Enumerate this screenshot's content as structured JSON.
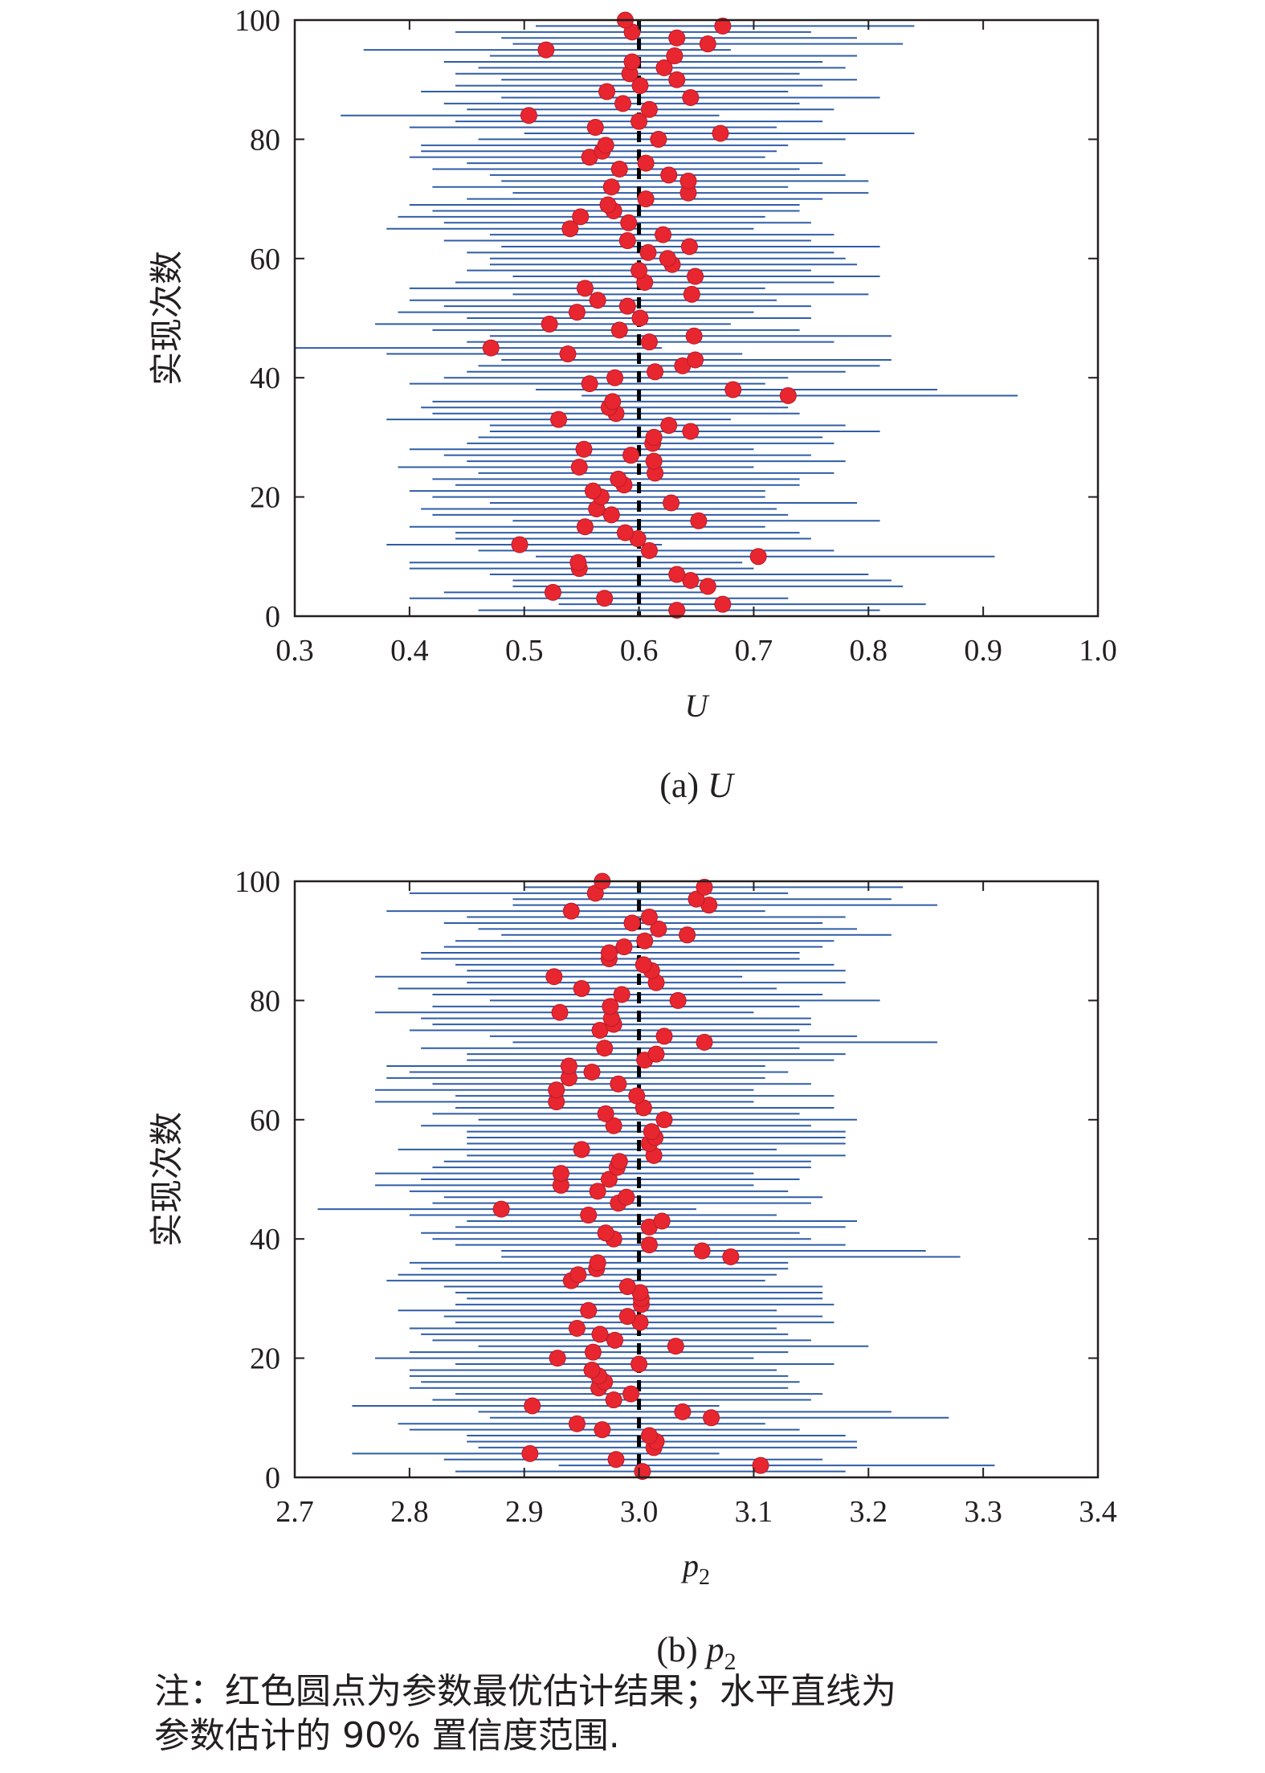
{
  "chart_data": [
    {
      "type": "scatter",
      "panel": "a",
      "ylabel": "实现次数",
      "xlabel": "U",
      "caption_prefix": "(a) ",
      "caption_var": "U",
      "xlim": [
        0.3,
        1.0
      ],
      "ylim": [
        0,
        100
      ],
      "xticks": [
        "0.3",
        "0.4",
        "0.5",
        "0.6",
        "0.7",
        "0.8",
        "0.9",
        "1.0"
      ],
      "xtick_values": [
        0.3,
        0.4,
        0.5,
        0.6,
        0.7,
        0.8,
        0.9,
        1.0
      ],
      "yticks": [
        "0",
        "20",
        "40",
        "60",
        "80",
        "100"
      ],
      "ytick_values": [
        0,
        20,
        40,
        60,
        80,
        100
      ],
      "true_value": 0.6,
      "series": [
        {
          "role": "best estimate (red dots)",
          "realization": [
            1,
            2,
            3,
            4,
            5,
            6,
            7,
            8,
            9,
            10,
            11,
            12,
            13,
            14,
            15,
            16,
            17,
            18,
            19,
            20,
            21,
            22,
            23,
            24,
            25,
            26,
            27,
            28,
            29,
            30,
            31,
            32,
            33,
            34,
            35,
            36,
            37,
            38,
            39,
            40,
            41,
            42,
            43,
            44,
            45,
            46,
            47,
            48,
            49,
            50,
            51,
            52,
            53,
            54,
            55,
            56,
            57,
            58,
            59,
            60,
            61,
            62,
            63,
            64,
            65,
            66,
            67,
            68,
            69,
            70,
            71,
            72,
            73,
            74,
            75,
            76,
            77,
            78,
            79,
            80,
            81,
            82,
            83,
            84,
            85,
            86,
            87,
            88,
            89,
            90,
            91,
            92,
            93,
            94,
            95,
            96,
            97,
            98,
            99,
            100
          ],
          "estimate": [
            0.633,
            0.673,
            0.57,
            0.525,
            0.66,
            0.645,
            0.633,
            0.548,
            0.547,
            0.704,
            0.609,
            0.496,
            0.599,
            0.588,
            0.553,
            0.652,
            0.576,
            0.563,
            0.628,
            0.567,
            0.56,
            0.587,
            0.582,
            0.614,
            0.548,
            0.613,
            0.593,
            0.552,
            0.612,
            0.613,
            0.645,
            0.626,
            0.53,
            0.58,
            0.574,
            0.577,
            0.73,
            0.682,
            0.557,
            0.579,
            0.614,
            0.638,
            0.649,
            0.538,
            0.471,
            0.609,
            0.648,
            0.583,
            0.522,
            0.601,
            0.546,
            0.59,
            0.564,
            0.646,
            0.553,
            0.605,
            0.649,
            0.6,
            0.629,
            0.625,
            0.608,
            0.644,
            0.59,
            0.621,
            0.54,
            0.591,
            0.549,
            0.578,
            0.573,
            0.606,
            0.643,
            0.576,
            0.643,
            0.626,
            0.583,
            0.606,
            0.557,
            0.568,
            0.571,
            0.617,
            0.671,
            0.562,
            0.6,
            0.504,
            0.609,
            0.586,
            0.645,
            0.572,
            0.601,
            0.633,
            0.592,
            0.622,
            0.594,
            0.631,
            0.519,
            0.66,
            0.633,
            0.594,
            0.673,
            0.588
          ],
          "lower": [
            0.46,
            0.53,
            0.4,
            0.43,
            0.49,
            0.49,
            0.47,
            0.4,
            0.4,
            0.51,
            0.46,
            0.38,
            0.44,
            0.44,
            0.4,
            0.49,
            0.42,
            0.41,
            0.47,
            0.42,
            0.4,
            0.44,
            0.42,
            0.46,
            0.39,
            0.45,
            0.43,
            0.4,
            0.45,
            0.46,
            0.47,
            0.47,
            0.38,
            0.42,
            0.41,
            0.42,
            0.55,
            0.51,
            0.4,
            0.43,
            0.45,
            0.46,
            0.48,
            0.38,
            0.3,
            0.45,
            0.47,
            0.42,
            0.37,
            0.45,
            0.39,
            0.43,
            0.4,
            0.49,
            0.4,
            0.44,
            0.49,
            0.45,
            0.47,
            0.47,
            0.45,
            0.48,
            0.43,
            0.47,
            0.38,
            0.43,
            0.39,
            0.42,
            0.4,
            0.45,
            0.49,
            0.42,
            0.48,
            0.47,
            0.42,
            0.45,
            0.4,
            0.41,
            0.41,
            0.46,
            0.5,
            0.4,
            0.44,
            0.34,
            0.45,
            0.43,
            0.48,
            0.41,
            0.44,
            0.48,
            0.44,
            0.46,
            0.43,
            0.47,
            0.36,
            0.49,
            0.48,
            0.44,
            0.51,
            0.45
          ],
          "upper": [
            0.81,
            0.85,
            0.73,
            0.66,
            0.83,
            0.82,
            0.8,
            0.7,
            0.69,
            0.91,
            0.77,
            0.62,
            0.75,
            0.74,
            0.71,
            0.81,
            0.73,
            0.72,
            0.79,
            0.71,
            0.71,
            0.74,
            0.74,
            0.77,
            0.7,
            0.78,
            0.75,
            0.7,
            0.77,
            0.76,
            0.81,
            0.78,
            0.68,
            0.74,
            0.73,
            0.73,
            0.93,
            0.86,
            0.71,
            0.73,
            0.78,
            0.81,
            0.82,
            0.69,
            0.62,
            0.77,
            0.82,
            0.74,
            0.68,
            0.75,
            0.7,
            0.75,
            0.72,
            0.8,
            0.71,
            0.77,
            0.81,
            0.75,
            0.79,
            0.78,
            0.77,
            0.81,
            0.75,
            0.77,
            0.7,
            0.75,
            0.71,
            0.74,
            0.74,
            0.76,
            0.8,
            0.73,
            0.8,
            0.78,
            0.74,
            0.76,
            0.71,
            0.72,
            0.73,
            0.78,
            0.84,
            0.72,
            0.76,
            0.67,
            0.77,
            0.74,
            0.81,
            0.73,
            0.76,
            0.79,
            0.74,
            0.78,
            0.76,
            0.79,
            0.68,
            0.83,
            0.79,
            0.75,
            0.84,
            0.73
          ]
        }
      ]
    },
    {
      "type": "scatter",
      "panel": "b",
      "ylabel": "实现次数",
      "xlabel_base": "p",
      "xlabel_sub": "2",
      "caption_prefix": "(b) ",
      "caption_var": "p",
      "caption_sub": "2",
      "xlim": [
        2.7,
        3.4
      ],
      "ylim": [
        0,
        100
      ],
      "xticks": [
        "2.7",
        "2.8",
        "2.9",
        "3.0",
        "3.1",
        "3.2",
        "3.3",
        "3.4"
      ],
      "xtick_values": [
        2.7,
        2.8,
        2.9,
        3.0,
        3.1,
        3.2,
        3.3,
        3.4
      ],
      "yticks": [
        "0",
        "20",
        "40",
        "60",
        "80",
        "100"
      ],
      "ytick_values": [
        0,
        20,
        40,
        60,
        80,
        100
      ],
      "true_value": 3.0,
      "series": [
        {
          "role": "best estimate (red dots)",
          "realization": [
            1,
            2,
            3,
            4,
            5,
            6,
            7,
            8,
            9,
            10,
            11,
            12,
            13,
            14,
            15,
            16,
            17,
            18,
            19,
            20,
            21,
            22,
            23,
            24,
            25,
            26,
            27,
            28,
            29,
            30,
            31,
            32,
            33,
            34,
            35,
            36,
            37,
            38,
            39,
            40,
            41,
            42,
            43,
            44,
            45,
            46,
            47,
            48,
            49,
            50,
            51,
            52,
            53,
            54,
            55,
            56,
            57,
            58,
            59,
            60,
            61,
            62,
            63,
            64,
            65,
            66,
            67,
            68,
            69,
            70,
            71,
            72,
            73,
            74,
            75,
            76,
            77,
            78,
            79,
            80,
            81,
            82,
            83,
            84,
            85,
            86,
            87,
            88,
            89,
            90,
            91,
            92,
            93,
            94,
            95,
            96,
            97,
            98,
            99,
            100
          ],
          "estimate": [
            3.003,
            3.106,
            2.98,
            2.905,
            3.013,
            3.015,
            3.009,
            2.968,
            2.946,
            3.063,
            3.038,
            2.907,
            2.978,
            2.993,
            2.965,
            2.97,
            2.965,
            2.959,
            3.0,
            2.929,
            2.96,
            3.032,
            2.979,
            2.966,
            2.946,
            3.001,
            2.99,
            2.956,
            3.002,
            3.002,
            3.001,
            2.99,
            2.941,
            2.947,
            2.963,
            2.964,
            3.08,
            3.055,
            3.009,
            2.978,
            2.971,
            3.009,
            3.02,
            2.956,
            2.88,
            2.982,
            2.989,
            2.964,
            2.932,
            2.974,
            2.932,
            2.981,
            2.983,
            3.013,
            2.95,
            3.009,
            3.014,
            3.011,
            2.978,
            3.022,
            2.971,
            3.004,
            2.928,
            2.998,
            2.928,
            2.982,
            2.939,
            2.959,
            2.939,
            3.005,
            3.015,
            2.97,
            3.057,
            3.022,
            2.966,
            2.978,
            2.976,
            2.931,
            2.975,
            3.034,
            2.985,
            2.95,
            3.015,
            2.926,
            3.011,
            3.004,
            2.974,
            2.974,
            2.987,
            3.005,
            3.042,
            3.017,
            2.994,
            3.009,
            2.941,
            3.061,
            3.05,
            2.962,
            3.057,
            2.968
          ],
          "lower": [
            2.84,
            2.93,
            2.83,
            2.75,
            2.86,
            2.85,
            2.85,
            2.8,
            2.79,
            2.87,
            2.86,
            2.75,
            2.82,
            2.84,
            2.8,
            2.81,
            2.8,
            2.8,
            2.84,
            2.77,
            2.8,
            2.86,
            2.82,
            2.81,
            2.8,
            2.84,
            2.83,
            2.79,
            2.84,
            2.85,
            2.84,
            2.83,
            2.78,
            2.79,
            2.81,
            2.8,
            2.88,
            2.88,
            2.84,
            2.82,
            2.81,
            2.84,
            2.85,
            2.8,
            2.72,
            2.82,
            2.83,
            2.8,
            2.77,
            2.81,
            2.77,
            2.82,
            2.83,
            2.85,
            2.79,
            2.85,
            2.85,
            2.85,
            2.81,
            2.86,
            2.82,
            2.84,
            2.77,
            2.84,
            2.77,
            2.82,
            2.78,
            2.8,
            2.78,
            2.85,
            2.85,
            2.81,
            2.89,
            2.87,
            2.8,
            2.82,
            2.81,
            2.77,
            2.82,
            2.87,
            2.82,
            2.79,
            2.85,
            2.77,
            2.85,
            2.84,
            2.81,
            2.81,
            2.83,
            2.84,
            2.88,
            2.86,
            2.83,
            2.85,
            2.78,
            2.89,
            2.89,
            2.8,
            2.9,
            2.81
          ],
          "upper": [
            3.18,
            3.31,
            3.16,
            3.07,
            3.19,
            3.19,
            3.18,
            3.14,
            3.11,
            3.27,
            3.22,
            3.07,
            3.15,
            3.16,
            3.13,
            3.14,
            3.13,
            3.12,
            3.17,
            3.1,
            3.13,
            3.2,
            3.15,
            3.13,
            3.12,
            3.17,
            3.16,
            3.12,
            3.17,
            3.16,
            3.16,
            3.16,
            3.11,
            3.12,
            3.13,
            3.13,
            3.28,
            3.25,
            3.18,
            3.15,
            3.14,
            3.18,
            3.19,
            3.12,
            3.05,
            3.15,
            3.16,
            3.13,
            3.1,
            3.14,
            3.1,
            3.15,
            3.15,
            3.18,
            3.12,
            3.18,
            3.18,
            3.18,
            3.15,
            3.19,
            3.14,
            3.17,
            3.1,
            3.17,
            3.1,
            3.15,
            3.11,
            3.13,
            3.11,
            3.17,
            3.18,
            3.14,
            3.26,
            3.19,
            3.14,
            3.15,
            3.15,
            3.1,
            3.14,
            3.21,
            3.16,
            3.12,
            3.18,
            3.09,
            3.18,
            3.17,
            3.14,
            3.14,
            3.16,
            3.17,
            3.22,
            3.19,
            3.16,
            3.18,
            3.11,
            3.26,
            3.22,
            3.13,
            3.23,
            3.15
          ]
        }
      ]
    }
  ],
  "colors": {
    "interval": "#2f5da6",
    "estimate": "#e8262f",
    "true_line": "#000000",
    "axis": "#231f20"
  },
  "note": {
    "line1": "注：红色圆点为参数最优估计结果；水平直线为",
    "line2": "参数估计的 90% 置信度范围."
  }
}
